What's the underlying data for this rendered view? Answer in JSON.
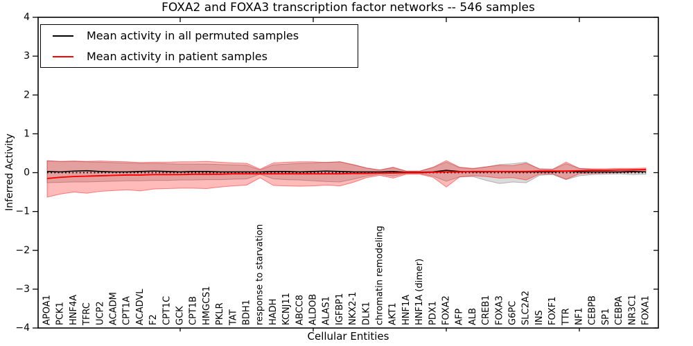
{
  "title": "FOXA2 and FOXA3 transcription factor networks -- 546 samples",
  "legend": {
    "entries": [
      {
        "label": "Mean activity in all permuted samples",
        "color": "#000000"
      },
      {
        "label": "Mean activity in patient samples",
        "color": "#ff0000"
      }
    ]
  },
  "chart_data": {
    "type": "line",
    "title": "FOXA2 and FOXA3 transcription factor networks -- 546 samples",
    "xlabel": "Cellular Entities",
    "ylabel": "Inferred Activity",
    "ylim": [
      -4,
      4
    ],
    "yticks": [
      -4,
      -3,
      -2,
      -1,
      0,
      1,
      2,
      3,
      4
    ],
    "x_marker_ticks": [
      10,
      20,
      30,
      40
    ],
    "grid": false,
    "legend_position": "upper left",
    "zero_line": {
      "value": 0,
      "style": "dotted",
      "color": "#000000"
    },
    "entities": [
      "APOA1",
      "PCK1",
      "HNF4A",
      "TFRC",
      "UCP2",
      "ACADM",
      "CPT1A",
      "ACADVL",
      "F2",
      "CPT1C",
      "GCK",
      "CPT1B",
      "HMGCS1",
      "PKLR",
      "TAT",
      "BDH1",
      "response to starvation",
      "HADH",
      "KCNJ11",
      "ABCC8",
      "ALDOB",
      "ALAS1",
      "IGFBP1",
      "NKX2-1",
      "DLK1",
      "chromatin remodeling",
      "AKT1",
      "HNF1A",
      "HNF1A (dimer)",
      "PDX1",
      "FOXA2",
      "AFP",
      "ALB",
      "CREB1",
      "FOXA3",
      "G6PC",
      "SLC2A2",
      "INS",
      "FOXF1",
      "TTR",
      "NF1",
      "CEBPB",
      "SP1",
      "CEBPA",
      "NR3C1",
      "FOXA1"
    ],
    "series": [
      {
        "name": "Mean activity in all permuted samples",
        "color": "#000000",
        "values": [
          0.03,
          0.02,
          0.04,
          0.05,
          0.03,
          0.02,
          0.02,
          0.03,
          0.04,
          0.03,
          0.02,
          0.03,
          0.03,
          0.02,
          0.02,
          0.02,
          0.02,
          0.03,
          0.03,
          0.02,
          0.03,
          0.04,
          0.03,
          0.02,
          0.02,
          0.02,
          0.03,
          0.01,
          0.01,
          0.02,
          0.06,
          0.03,
          0.02,
          0.02,
          0.03,
          0.02,
          0.02,
          0.02,
          0.02,
          0.04,
          0.02,
          0.02,
          0.02,
          0.02,
          0.03,
          0.02
        ]
      },
      {
        "name": "Mean activity in patient samples",
        "color": "#ff0000",
        "values": [
          -0.15,
          -0.12,
          -0.1,
          -0.09,
          -0.08,
          -0.07,
          -0.06,
          -0.06,
          -0.05,
          -0.05,
          -0.05,
          -0.04,
          -0.04,
          -0.04,
          -0.03,
          -0.03,
          -0.03,
          -0.03,
          -0.03,
          -0.03,
          -0.03,
          -0.03,
          -0.03,
          -0.02,
          -0.02,
          -0.01,
          -0.01,
          0.0,
          0.0,
          0.01,
          0.02,
          0.02,
          0.03,
          0.03,
          0.03,
          0.03,
          0.03,
          0.04,
          0.04,
          0.04,
          0.05,
          0.06,
          0.06,
          0.07,
          0.07,
          0.08
        ]
      }
    ],
    "bands": [
      {
        "name": "permuted-samples-std-band",
        "fill": "rgba(0,0,0,0.14)",
        "edge": "rgba(0,0,0,0.25)",
        "upper": [
          0.3,
          0.29,
          0.29,
          0.28,
          0.27,
          0.26,
          0.25,
          0.24,
          0.24,
          0.23,
          0.22,
          0.22,
          0.22,
          0.21,
          0.2,
          0.19,
          0.07,
          0.2,
          0.22,
          0.24,
          0.25,
          0.27,
          0.28,
          0.2,
          0.12,
          0.07,
          0.13,
          0.04,
          0.04,
          0.13,
          0.27,
          0.13,
          0.1,
          0.15,
          0.21,
          0.23,
          0.27,
          0.09,
          0.08,
          0.23,
          0.11,
          0.08,
          0.07,
          0.06,
          0.09,
          0.08
        ],
        "lower": [
          -0.26,
          -0.25,
          -0.24,
          -0.24,
          -0.23,
          -0.22,
          -0.21,
          -0.21,
          -0.2,
          -0.2,
          -0.19,
          -0.19,
          -0.18,
          -0.18,
          -0.17,
          -0.16,
          -0.04,
          -0.16,
          -0.18,
          -0.19,
          -0.21,
          -0.23,
          -0.24,
          -0.17,
          -0.09,
          -0.04,
          -0.09,
          -0.02,
          -0.02,
          -0.09,
          -0.22,
          -0.11,
          -0.1,
          -0.2,
          -0.28,
          -0.24,
          -0.26,
          -0.07,
          -0.05,
          -0.18,
          -0.08,
          -0.05,
          -0.04,
          -0.03,
          -0.05,
          -0.04
        ]
      },
      {
        "name": "patient-samples-std-band",
        "fill": "rgba(255,0,0,0.27)",
        "edge": "rgba(255,0,0,0.45)",
        "upper": [
          0.31,
          0.29,
          0.3,
          0.29,
          0.3,
          0.29,
          0.28,
          0.26,
          0.27,
          0.27,
          0.28,
          0.28,
          0.29,
          0.27,
          0.25,
          0.24,
          0.09,
          0.25,
          0.27,
          0.28,
          0.28,
          0.26,
          0.28,
          0.21,
          0.12,
          0.07,
          0.14,
          0.04,
          0.04,
          0.14,
          0.31,
          0.14,
          0.11,
          0.15,
          0.19,
          0.18,
          0.24,
          0.1,
          0.09,
          0.27,
          0.11,
          0.1,
          0.1,
          0.11,
          0.11,
          0.12
        ],
        "lower": [
          -0.63,
          -0.55,
          -0.5,
          -0.53,
          -0.48,
          -0.46,
          -0.44,
          -0.47,
          -0.42,
          -0.41,
          -0.4,
          -0.4,
          -0.41,
          -0.37,
          -0.34,
          -0.32,
          -0.13,
          -0.33,
          -0.34,
          -0.35,
          -0.34,
          -0.32,
          -0.34,
          -0.25,
          -0.13,
          -0.07,
          -0.14,
          -0.04,
          -0.04,
          -0.12,
          -0.37,
          -0.11,
          -0.08,
          -0.1,
          -0.14,
          -0.13,
          -0.19,
          -0.04,
          -0.03,
          -0.17,
          -0.03,
          -0.02,
          -0.01,
          0.0,
          0.01,
          0.02
        ]
      }
    ]
  }
}
